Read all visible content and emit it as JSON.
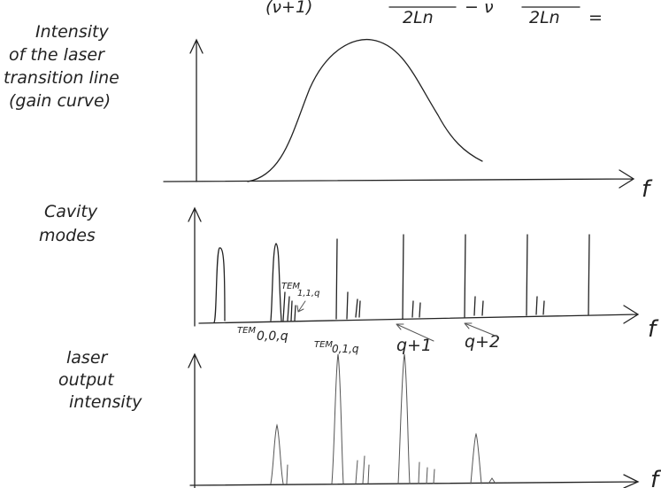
{
  "formula": {
    "part_1": "(ν+1)",
    "denominator_1": "2Ln",
    "part_2": "− ν",
    "denominator_2": "2Ln",
    "equals": "="
  },
  "panels": [
    {
      "label_lines": [
        "Intensity",
        "of the laser",
        "transition line",
        "(gain curve)"
      ],
      "axis_label": "f"
    },
    {
      "label_lines": [
        "Cavity",
        "modes"
      ],
      "axis_label": "f",
      "annotations": [
        {
          "text": "TEM",
          "subscript": "1,1,q"
        },
        {
          "text": "TEM",
          "subscript": "0,0,q"
        },
        {
          "text": "TEM",
          "subscript": "0,1,q"
        },
        {
          "text": "q+1"
        },
        {
          "text": "q+2"
        }
      ]
    },
    {
      "label_lines": [
        "laser",
        "output",
        "intensity"
      ],
      "axis_label": "f"
    }
  ]
}
